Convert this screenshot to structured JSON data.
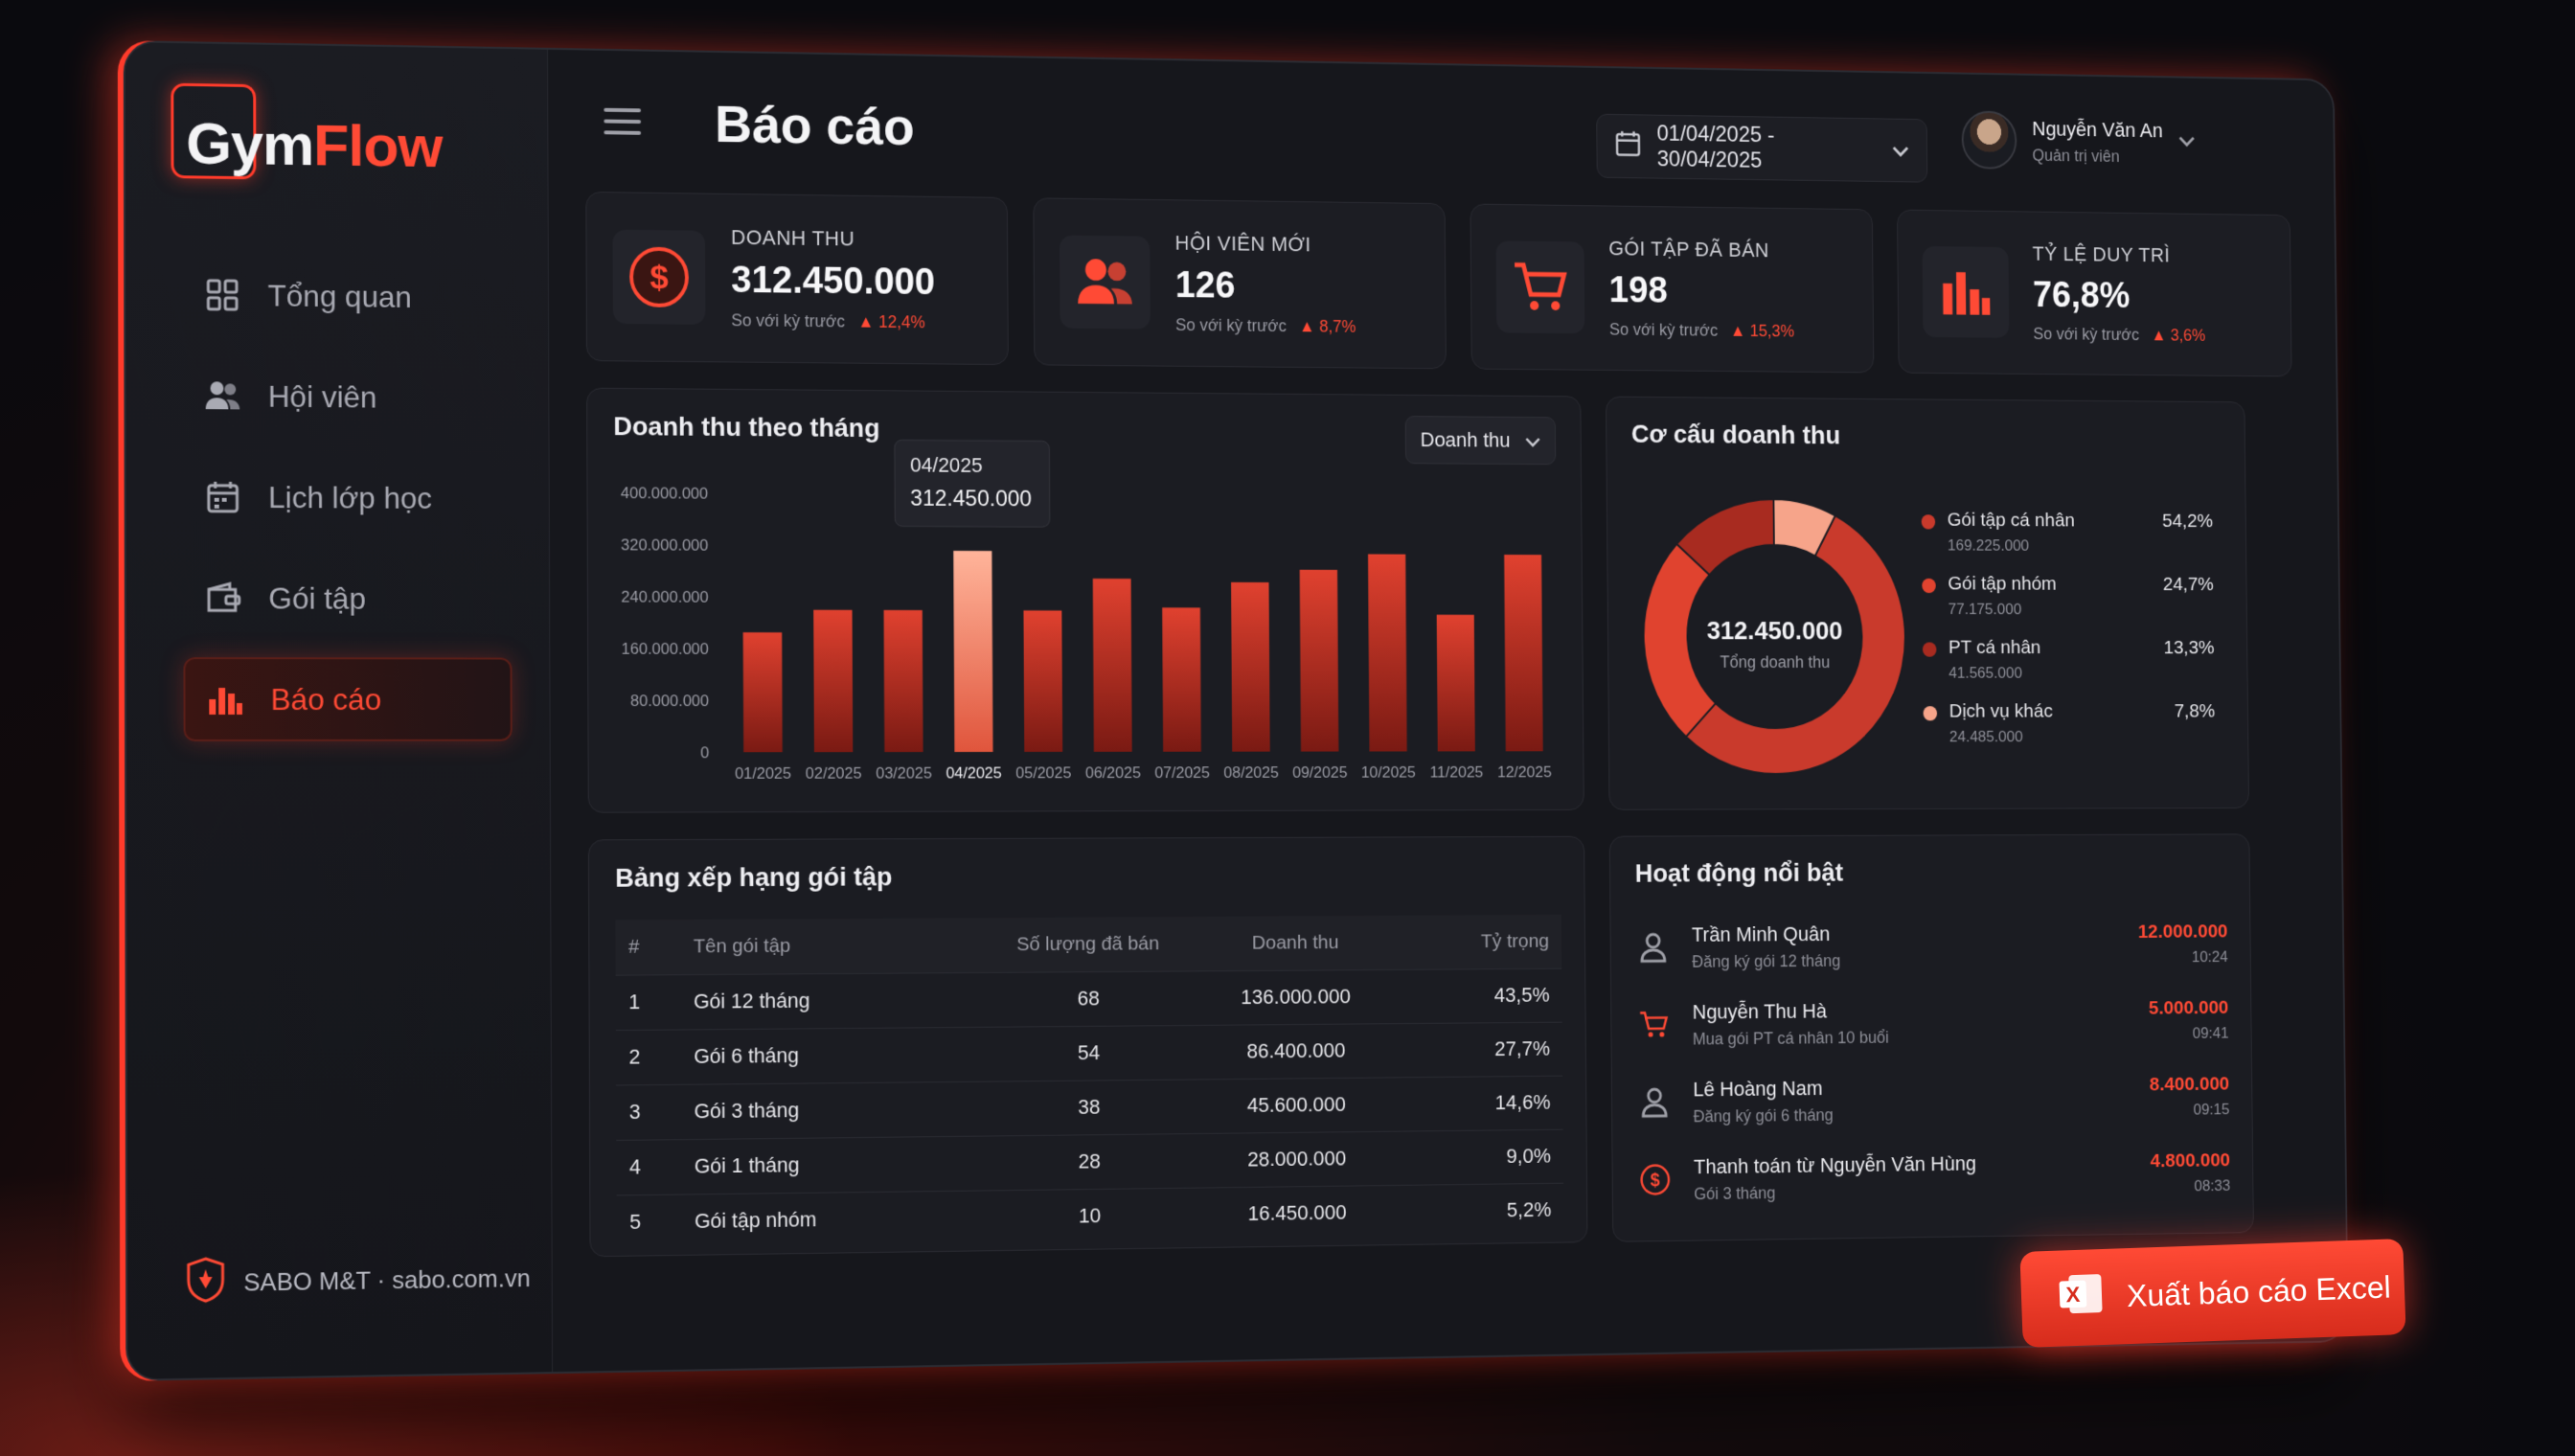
{
  "logo": {
    "part1": "Gym",
    "part2": "Flow"
  },
  "sidebar": {
    "items": [
      {
        "label": "Tổng quan",
        "icon": "grid-icon"
      },
      {
        "label": "Hội viên",
        "icon": "users-icon"
      },
      {
        "label": "Lịch lớp học",
        "icon": "calendar-icon"
      },
      {
        "label": "Gói tập",
        "icon": "wallet-icon"
      },
      {
        "label": "Báo cáo",
        "icon": "bar-chart-icon",
        "active": true
      }
    ],
    "footer": "SABO M&T · sabo.com.vn"
  },
  "header": {
    "title": "Báo cáo",
    "date_range": "01/04/2025 - 30/04/2025",
    "user_name": "Nguyễn Văn An",
    "user_role": "Quản trị viên"
  },
  "stats": [
    {
      "label": "DOANH THU",
      "value": "312.450.000",
      "compare": "So với kỳ trước",
      "change": "▲ 12,4%"
    },
    {
      "label": "HỘI VIÊN MỚI",
      "value": "126",
      "compare": "So với kỳ trước",
      "change": "▲ 8,7%"
    },
    {
      "label": "GÓI TẬP ĐÃ BÁN",
      "value": "198",
      "compare": "So với kỳ trước",
      "change": "▲ 15,3%"
    },
    {
      "label": "TỶ LỆ DUY TRÌ",
      "value": "76,8%",
      "compare": "So với kỳ trước",
      "change": "▲ 3,6%"
    }
  ],
  "revenue_chart": {
    "title": "Doanh thu theo tháng",
    "dropdown": "Doanh thu",
    "tooltip": {
      "label": "04/2025",
      "value": "312.450.000"
    }
  },
  "chart_data": {
    "type": "bar",
    "title": "Doanh thu theo tháng",
    "categories": [
      "01/2025",
      "02/2025",
      "03/2025",
      "04/2025",
      "05/2025",
      "06/2025",
      "07/2025",
      "08/2025",
      "09/2025",
      "10/2025",
      "11/2025",
      "12/2025"
    ],
    "values": [
      185000000,
      220000000,
      220000000,
      312450000,
      220000000,
      270000000,
      225000000,
      265000000,
      285000000,
      310000000,
      215000000,
      310000000
    ],
    "highlight_index": 3,
    "yticks": [
      "0",
      "80.000.000",
      "160.000.000",
      "240.000.000",
      "320.000.000",
      "400.000.000"
    ],
    "ylim": [
      0,
      400000000
    ],
    "grid": false
  },
  "structure": {
    "title": "Cơ cấu doanh thu",
    "center_value": "312.450.000",
    "center_label": "Tổng doanh thu",
    "slices": [
      {
        "name": "Gói tập cá nhân",
        "amount": "169.225.000",
        "pct": "54,2%",
        "value": 54.2,
        "color": "#c93a2c"
      },
      {
        "name": "Gói tập nhóm",
        "amount": "77.175.000",
        "pct": "24,7%",
        "value": 24.7,
        "color": "#e0432f"
      },
      {
        "name": "PT cá nhân",
        "amount": "41.565.000",
        "pct": "13,3%",
        "value": 13.3,
        "color": "#a82b20"
      },
      {
        "name": "Dịch vụ khác",
        "amount": "24.485.000",
        "pct": "7,8%",
        "value": 7.8,
        "color": "#f6a48a"
      }
    ]
  },
  "ranking": {
    "title": "Bảng xếp hạng gói tập",
    "headers": [
      "#",
      "Tên gói tập",
      "Số lượng đã bán",
      "Doanh thu",
      "Tỷ trọng"
    ],
    "rows": [
      [
        "1",
        "Gói 12 tháng",
        "68",
        "136.000.000",
        "43,5%"
      ],
      [
        "2",
        "Gói 6 tháng",
        "54",
        "86.400.000",
        "27,7%"
      ],
      [
        "3",
        "Gói 3 tháng",
        "38",
        "45.600.000",
        "14,6%"
      ],
      [
        "4",
        "Gói 1 tháng",
        "28",
        "28.000.000",
        "9,0%"
      ],
      [
        "5",
        "Gói tập nhóm",
        "10",
        "16.450.000",
        "5,2%"
      ]
    ]
  },
  "activity": {
    "title": "Hoạt động nổi bật",
    "items": [
      {
        "name": "Trần Minh Quân",
        "desc": "Đăng ký gói 12 tháng",
        "amount": "12.000.000",
        "time": "10:24",
        "icon": "user-icon"
      },
      {
        "name": "Nguyễn Thu Hà",
        "desc": "Mua gói PT cá nhân 10 buổi",
        "amount": "5.000.000",
        "time": "09:41",
        "icon": "cart-icon"
      },
      {
        "name": "Lê Hoàng Nam",
        "desc": "Đăng ký gói 6 tháng",
        "amount": "8.400.000",
        "time": "09:15",
        "icon": "user-icon"
      },
      {
        "name": "Thanh toán từ Nguyễn Văn Hùng",
        "desc": "Gói 3 tháng",
        "amount": "4.800.000",
        "time": "08:33",
        "icon": "dollar-icon"
      }
    ]
  },
  "export_button": "Xuất báo cáo Excel"
}
